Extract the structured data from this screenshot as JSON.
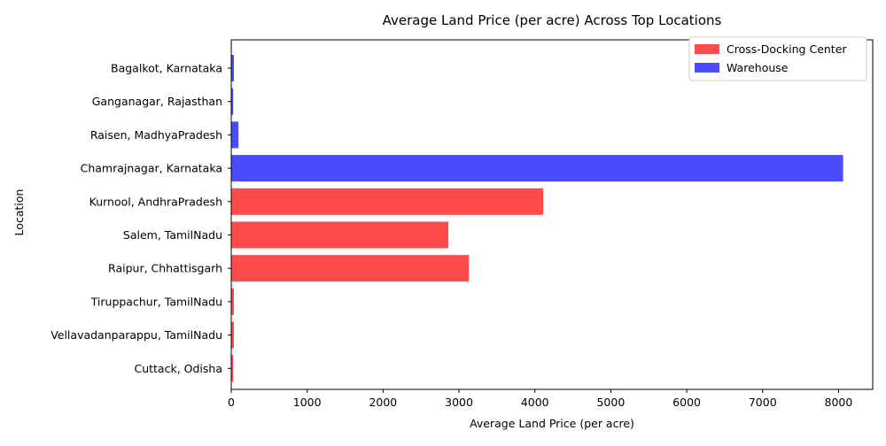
{
  "chart_data": {
    "type": "bar",
    "orientation": "horizontal",
    "title": "Average Land Price (per acre) Across Top Locations",
    "xlabel": "Average Land Price (per acre)",
    "ylabel": "Location",
    "xlim": [
      0,
      8450
    ],
    "xticks": [
      0,
      1000,
      2000,
      3000,
      4000,
      5000,
      6000,
      7000,
      8000
    ],
    "grid": false,
    "legend_position": "top-right",
    "series": [
      {
        "name": "Cross-Docking Center",
        "color": "#ff4b4b"
      },
      {
        "name": "Warehouse",
        "color": "#4b4bff"
      }
    ],
    "bars": [
      {
        "location": "Bagalkot, Karnataka",
        "value": 35,
        "series": "Warehouse"
      },
      {
        "location": "Ganganagar, Rajasthan",
        "value": 25,
        "series": "Warehouse"
      },
      {
        "location": "Raisen, MadhyaPradesh",
        "value": 95,
        "series": "Warehouse"
      },
      {
        "location": "Chamrajnagar, Karnataka",
        "value": 8060,
        "series": "Warehouse"
      },
      {
        "location": "Kurnool, AndhraPradesh",
        "value": 4110,
        "series": "Cross-Docking Center"
      },
      {
        "location": "Salem, TamilNadu",
        "value": 2860,
        "series": "Cross-Docking Center"
      },
      {
        "location": "Raipur, Chhattisgarh",
        "value": 3130,
        "series": "Cross-Docking Center"
      },
      {
        "location": "Tiruppachur, TamilNadu",
        "value": 35,
        "series": "Cross-Docking Center"
      },
      {
        "location": "Vellavadanparappu, TamilNadu",
        "value": 35,
        "series": "Cross-Docking Center"
      },
      {
        "location": "Cuttack, Odisha",
        "value": 25,
        "series": "Cross-Docking Center"
      }
    ]
  }
}
